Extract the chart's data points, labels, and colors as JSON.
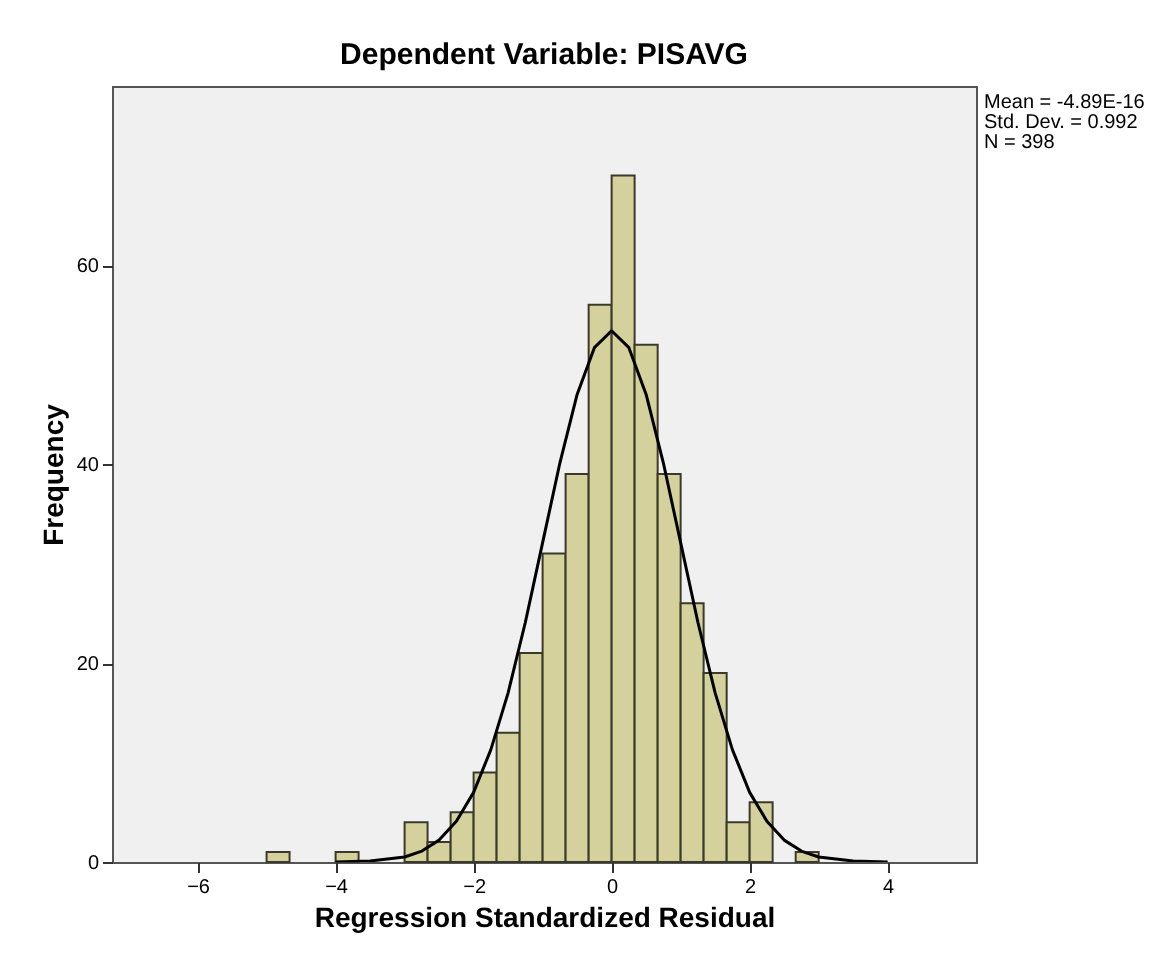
{
  "chart_data": {
    "type": "histogram",
    "title": "Dependent Variable: PISAVG",
    "xlabel": "Regression Standardized Residual",
    "ylabel": "Frequency",
    "annotations": [
      "Mean = -4.89E-16",
      "Std. Dev. = 0.992",
      "N = 398"
    ],
    "xlim": [
      -7.24,
      5.28
    ],
    "xticks": [
      -6,
      -4,
      -2,
      0,
      2,
      4
    ],
    "ylim": [
      0,
      78
    ],
    "yticks": [
      0,
      20,
      40,
      60
    ],
    "grid": false,
    "series": [
      {
        "type": "histogram",
        "color": "#d5d19c",
        "bins": [
          -5,
          -4.667,
          -4.333,
          -4,
          -3.667,
          -3.333,
          -3,
          -2.667,
          -2.333,
          -2,
          -1.667,
          -1.333,
          -1,
          -0.667,
          -0.333,
          0,
          0.333,
          0.667,
          1,
          1.333,
          1.667,
          2,
          2.333,
          2.667,
          3
        ],
        "values": [
          1,
          0,
          0,
          1,
          0,
          0,
          4,
          2,
          5,
          9,
          13,
          21,
          31,
          39,
          56,
          69,
          52,
          39,
          26,
          19,
          4,
          6,
          0,
          1
        ]
      },
      {
        "type": "line",
        "color": "#000000",
        "x": [
          -4,
          -3.5,
          -3,
          -2.75,
          -2.5,
          -2.25,
          -2,
          -1.75,
          -1.5,
          -1.25,
          -1,
          -0.75,
          -0.5,
          -0.25,
          0,
          0.25,
          0.5,
          0.75,
          1,
          1.25,
          1.5,
          1.75,
          2,
          2.25,
          2.5,
          2.75,
          3,
          3.5,
          4
        ],
        "values": [
          0,
          0.1,
          0.5,
          1.1,
          2.2,
          4.1,
          7,
          11.3,
          17,
          24.1,
          32.1,
          40.1,
          47,
          51.7,
          53.4,
          51.7,
          47,
          40.1,
          32.1,
          24.1,
          17,
          11.3,
          7,
          4.1,
          2.2,
          1.1,
          0.5,
          0.1,
          0
        ]
      }
    ]
  }
}
